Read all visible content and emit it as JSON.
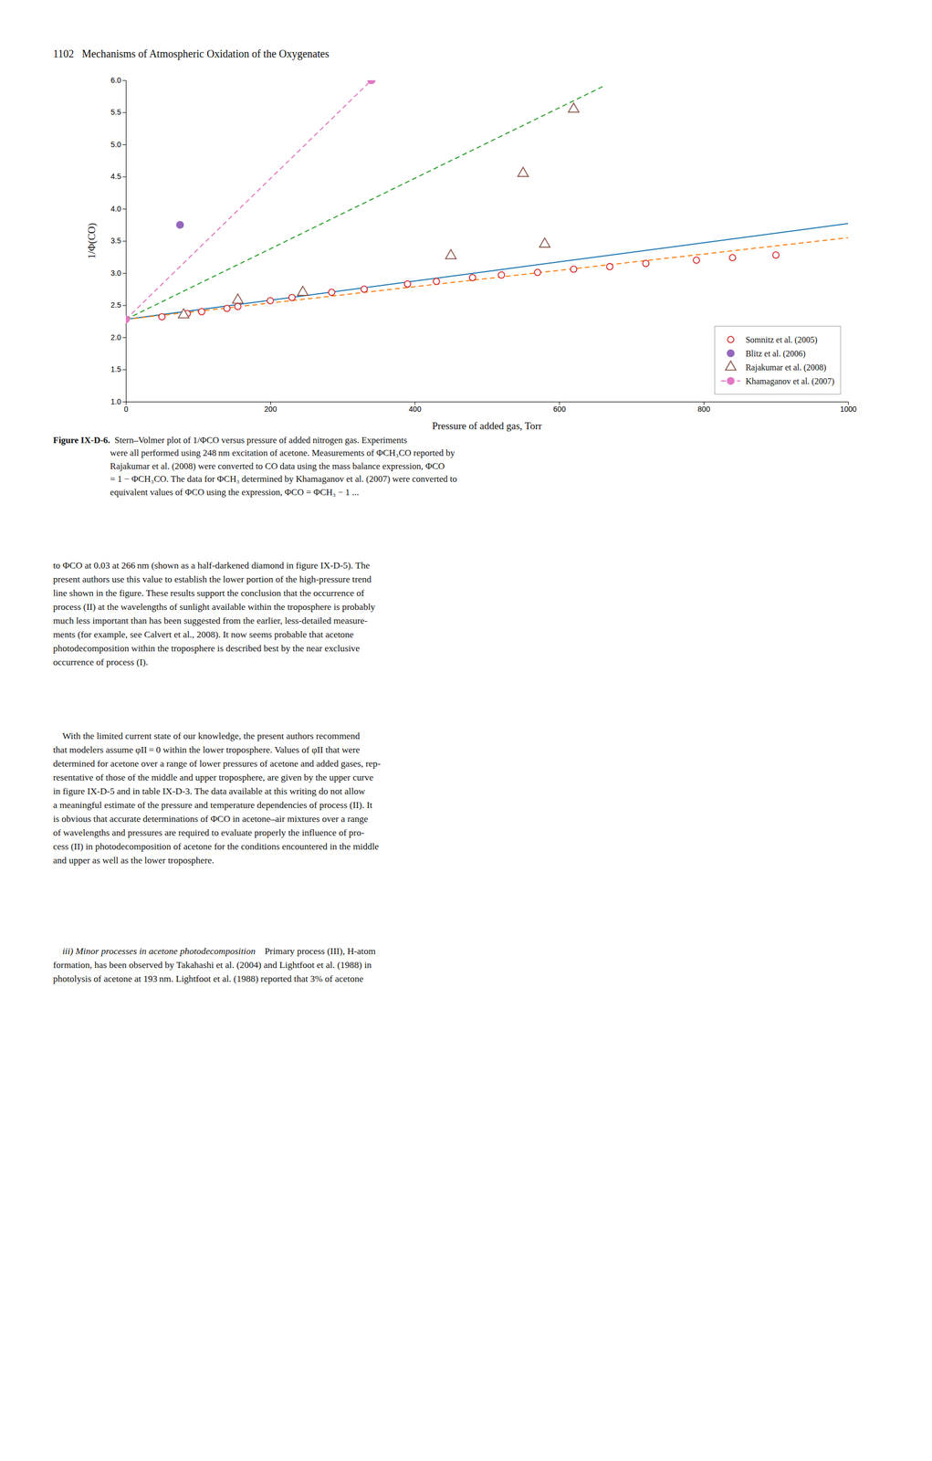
{
  "chart_data": {
    "type": "scatter",
    "xlabel": "Pressure of added gas, Torr",
    "ylabel": "1/Φ(CO)",
    "xlim": [
      0,
      1000
    ],
    "ylim": [
      1.0,
      6.0
    ],
    "xticks": [
      0,
      200,
      400,
      600,
      800,
      1000
    ],
    "yticks": [
      {
        "value": 1,
        "label": "1.0"
      },
      1.5,
      {
        "value": 2,
        "label": "2.0"
      },
      2.5,
      {
        "value": 3,
        "label": "3.0"
      },
      3.5,
      {
        "value": 4,
        "label": "4.0"
      },
      4.5,
      {
        "value": 5,
        "label": "5.0"
      },
      5.5,
      {
        "value": 6,
        "label": "6.0"
      }
    ],
    "legend": "lower right",
    "series": [
      {
        "type": "line",
        "line_style": "solid",
        "x": [
          0,
          1000
        ],
        "values": [
          2.28,
          3.77
        ]
      },
      {
        "type": "line",
        "line_style": "dashed",
        "x": [
          0,
          1000
        ],
        "values": [
          2.28,
          3.55
        ]
      },
      {
        "type": "line",
        "line_style": "dashed",
        "x": [
          0,
          660
        ],
        "values": [
          2.28,
          5.9
        ]
      },
      {
        "name": "Somnitz et al. (2005)",
        "type": "scatter",
        "marker": "circle-open",
        "x": [
          50,
          85,
          105,
          140,
          155,
          200,
          230,
          285,
          330,
          390,
          430,
          480,
          520,
          570,
          620,
          670,
          720,
          790,
          840,
          900
        ],
        "values": [
          2.32,
          2.37,
          2.4,
          2.45,
          2.48,
          2.57,
          2.62,
          2.7,
          2.75,
          2.83,
          2.87,
          2.93,
          2.97,
          3.01,
          3.06,
          3.1,
          3.15,
          3.2,
          3.24,
          3.28
        ]
      },
      {
        "name": "Blitz et al. (2006)",
        "type": "scatter",
        "marker": "circle",
        "x": [
          75,
          340
        ],
        "values": [
          3.75,
          6.0
        ]
      },
      {
        "name": "Rajakumar et al. (2008)",
        "type": "scatter",
        "marker": "triangle-open",
        "x": [
          80,
          155,
          245,
          450,
          580,
          550,
          620
        ],
        "values": [
          2.35,
          2.58,
          2.7,
          3.27,
          3.45,
          4.55,
          5.55
        ]
      },
      {
        "name": "Khamaganov et al. (2007)",
        "type": "line",
        "line_style": "dashed",
        "marker": "circle",
        "x": [
          0,
          340
        ],
        "values": [
          2.28,
          6.0
        ]
      }
    ],
    "annotations": [
      "1102   Mechanisms of Atmospheric Oxidation of the Oxygenates",
      "Figure IX-D-6.",
      " Stern–Volmer plot of 1/ΦCO versus pressure of added nitrogen gas. Experiments\nwere all performed using 248 nm excitation of acetone. Measurements of ΦCH₃CO reported by\nRajakumar et al. (2008) were converted to CO data using the mass balance expression, ΦCO\n= 1 − ΦCH₃CO. The data for ΦCH₃ determined by Khamaganov et al. (2007) were converted to\nequivalent values of ΦCO using the expression, ΦCO = ΦCH₃ − 1 ...",
      "to ΦCO at 0.03 at 266 nm (shown as a half-darkened diamond in figure IX-D-5). The\npresent authors use this value to establish the lower portion of the high-pressure trend\nline shown in the figure. These results support the conclusion that the occurrence of\nprocess (II) at the wavelengths of sunlight available within the troposphere is probably\nmuch less important than has been suggested from the earlier, less-detailed measure-\nments (for example, see Calvert et al., 2008). It now seems probable that acetone\nphotodecomposition within the troposphere is described best by the near exclusive\noccurrence of process (I).",
      " With the limited current state of our knowledge, the present authors recommend\nthat modelers assume φII = 0 within the lower troposphere. Values of φII that were\ndetermined for acetone over a range of lower pressures of acetone and added gases, rep-\nresentative of those of the middle and upper troposphere, are given by the upper curve\nin figure IX-D-5 and in table IX-D-3. The data available at this writing do not allow\na meaningful estimate of the pressure and temperature dependencies of process (II). It\nis obvious that accurate determinations of ΦCO in acetone–air mixtures over a range\nof wavelengths and pressures are required to evaluate properly the influence of pro-\ncess (II) in photodecomposition of acetone for the conditions encountered in the middle\nand upper as well as the lower troposphere.",
      " iii) Minor processes in acetone photodecomposition",
      " Primary process (III), H-atom",
      "formation, has been observed by Takahashi et al. (2004) and Lightfoot et al. (1988) in\nphotolysis of acetone at 193 nm. Lightfoot et al. (1988) reported that 3% of acetone"
    ]
  }
}
